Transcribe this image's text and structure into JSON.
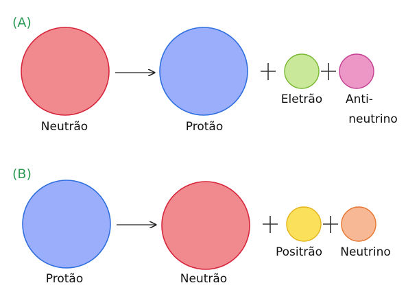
{
  "colors": {
    "neutron_fill": "#f08a8f",
    "neutron_stroke": "#d6263b",
    "proton_fill": "#9aaefb",
    "proton_stroke": "#2f6fde",
    "electron_fill": "#c9e89a",
    "electron_stroke": "#77b832",
    "antineutrino_fill": "#ec97c6",
    "antineutrino_stroke": "#c43e91",
    "positron_fill": "#fbe15b",
    "positron_stroke": "#e2b31c",
    "neutrino_fill": "#f7b895",
    "neutrino_stroke": "#e6752f",
    "panel_label": "#2e9a55"
  },
  "panel_a": {
    "label": "(A)",
    "reactant": "Neutrão",
    "product": "Protão",
    "particle_1": "Eletrão",
    "particle_2_line1": "Anti-",
    "particle_2_line2": "neutrino"
  },
  "panel_b": {
    "label": "(B)",
    "reactant": "Protão",
    "product": "Neutrão",
    "particle_1": "Positrão",
    "particle_2": "Neutrino"
  }
}
